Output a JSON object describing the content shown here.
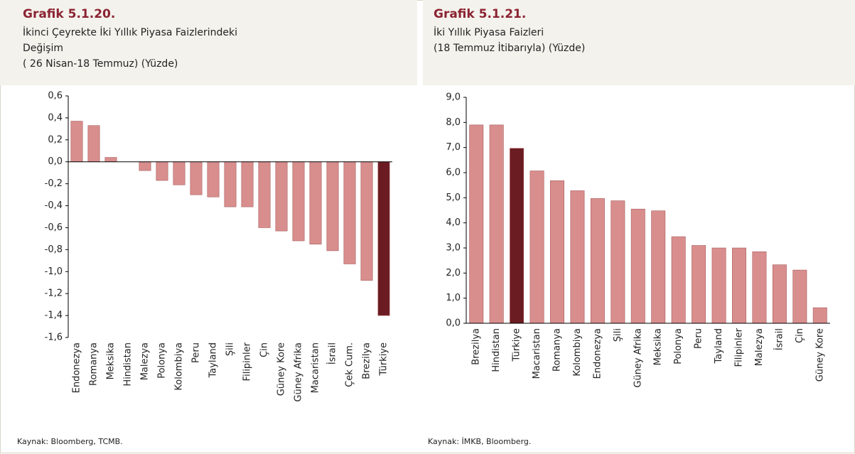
{
  "chart_data": [
    {
      "type": "bar",
      "title": "Grafik 5.1.20.",
      "subtitle": [
        "İkinci Çeyrekte İki Yıllık Piyasa Faizlerindeki",
        "Değişim",
        "( 26 Nisan-18 Temmuz) (Yüzde)"
      ],
      "source": "Kaynak: Bloomberg, TCMB.",
      "categories": [
        "Endonezya",
        "Romanya",
        "Meksika",
        "Hindistan",
        "Malezya",
        "Polonya",
        "Kolombiya",
        "Peru",
        "Tayland",
        "Şili",
        "Filipinler",
        "Çin",
        "Güney Kore",
        "Güney Afrika",
        "Macaristan",
        "İsrail",
        "Çek Cum.",
        "Brezilya",
        "Türkiye"
      ],
      "values": [
        0.37,
        0.33,
        0.04,
        0,
        -0.08,
        -0.17,
        -0.21,
        -0.3,
        -0.32,
        -0.41,
        -0.41,
        -0.6,
        -0.63,
        -0.72,
        -0.75,
        -0.81,
        -0.93,
        -1.08,
        -1.4
      ],
      "colors": [
        "#d98e8e",
        "#d98e8e",
        "#d98e8e",
        "#d98e8e",
        "#d98e8e",
        "#d98e8e",
        "#d98e8e",
        "#d98e8e",
        "#d98e8e",
        "#d98e8e",
        "#d98e8e",
        "#d98e8e",
        "#d98e8e",
        "#d98e8e",
        "#d98e8e",
        "#d98e8e",
        "#d98e8e",
        "#d98e8e",
        "#6b1c22"
      ],
      "ylim": [
        -1.6,
        0.6
      ],
      "yticks": [
        {
          "value": 0.6,
          "label": "0,6"
        },
        {
          "value": 0.4,
          "label": "0,4"
        },
        {
          "value": 0.2,
          "label": "0,2"
        },
        {
          "value": 0,
          "label": "0,0"
        },
        {
          "value": -0.2,
          "label": "-0,2"
        },
        {
          "value": -0.4,
          "label": "-0,4"
        },
        {
          "value": -0.6,
          "label": "-0,6"
        },
        {
          "value": -0.8,
          "label": "-0,8"
        },
        {
          "value": -1.0,
          "label": "-1,0"
        },
        {
          "value": -1.2,
          "label": "-1,2"
        },
        {
          "value": -1.4,
          "label": "-1,4"
        },
        {
          "value": -1.6,
          "label": "-1,6"
        }
      ]
    },
    {
      "type": "bar",
      "title": "Grafik 5.1.21.",
      "subtitle": [
        "İki Yıllık Piyasa Faizleri",
        "(18 Temmuz İtibarıyla) (Yüzde)"
      ],
      "source": "Kaynak: İMKB, Bloomberg.",
      "categories": [
        "Brezilya",
        "Hindistan",
        "Türkiye",
        "Macaristan",
        "Romanya",
        "Kolombiya",
        "Endonezya",
        "Şili",
        "Güney Afrika",
        "Meksika",
        "Polonya",
        "Peru",
        "Tayland",
        "Filipinler",
        "Malezya",
        "İsrail",
        "Çin",
        "Güney Kore"
      ],
      "values": [
        7.9,
        7.9,
        6.97,
        6.07,
        5.68,
        5.28,
        4.97,
        4.88,
        4.55,
        4.48,
        3.45,
        3.1,
        3.0,
        3.0,
        2.85,
        2.33,
        2.12,
        0.62
      ],
      "colors": [
        "#d98e8e",
        "#d98e8e",
        "#6b1c22",
        "#d98e8e",
        "#d98e8e",
        "#d98e8e",
        "#d98e8e",
        "#d98e8e",
        "#d98e8e",
        "#d98e8e",
        "#d98e8e",
        "#d98e8e",
        "#d98e8e",
        "#d98e8e",
        "#d98e8e",
        "#d98e8e",
        "#d98e8e",
        "#d98e8e"
      ],
      "ylim": [
        0,
        9
      ],
      "yticks": [
        {
          "value": 9,
          "label": "9,0"
        },
        {
          "value": 8,
          "label": "8,0"
        },
        {
          "value": 7,
          "label": "7,0"
        },
        {
          "value": 6,
          "label": "6,0"
        },
        {
          "value": 5,
          "label": "5,0"
        },
        {
          "value": 4,
          "label": "4,0"
        },
        {
          "value": 3,
          "label": "3,0"
        },
        {
          "value": 2,
          "label": "2,0"
        },
        {
          "value": 1,
          "label": "1,0"
        },
        {
          "value": 0,
          "label": "0,0"
        }
      ]
    }
  ]
}
